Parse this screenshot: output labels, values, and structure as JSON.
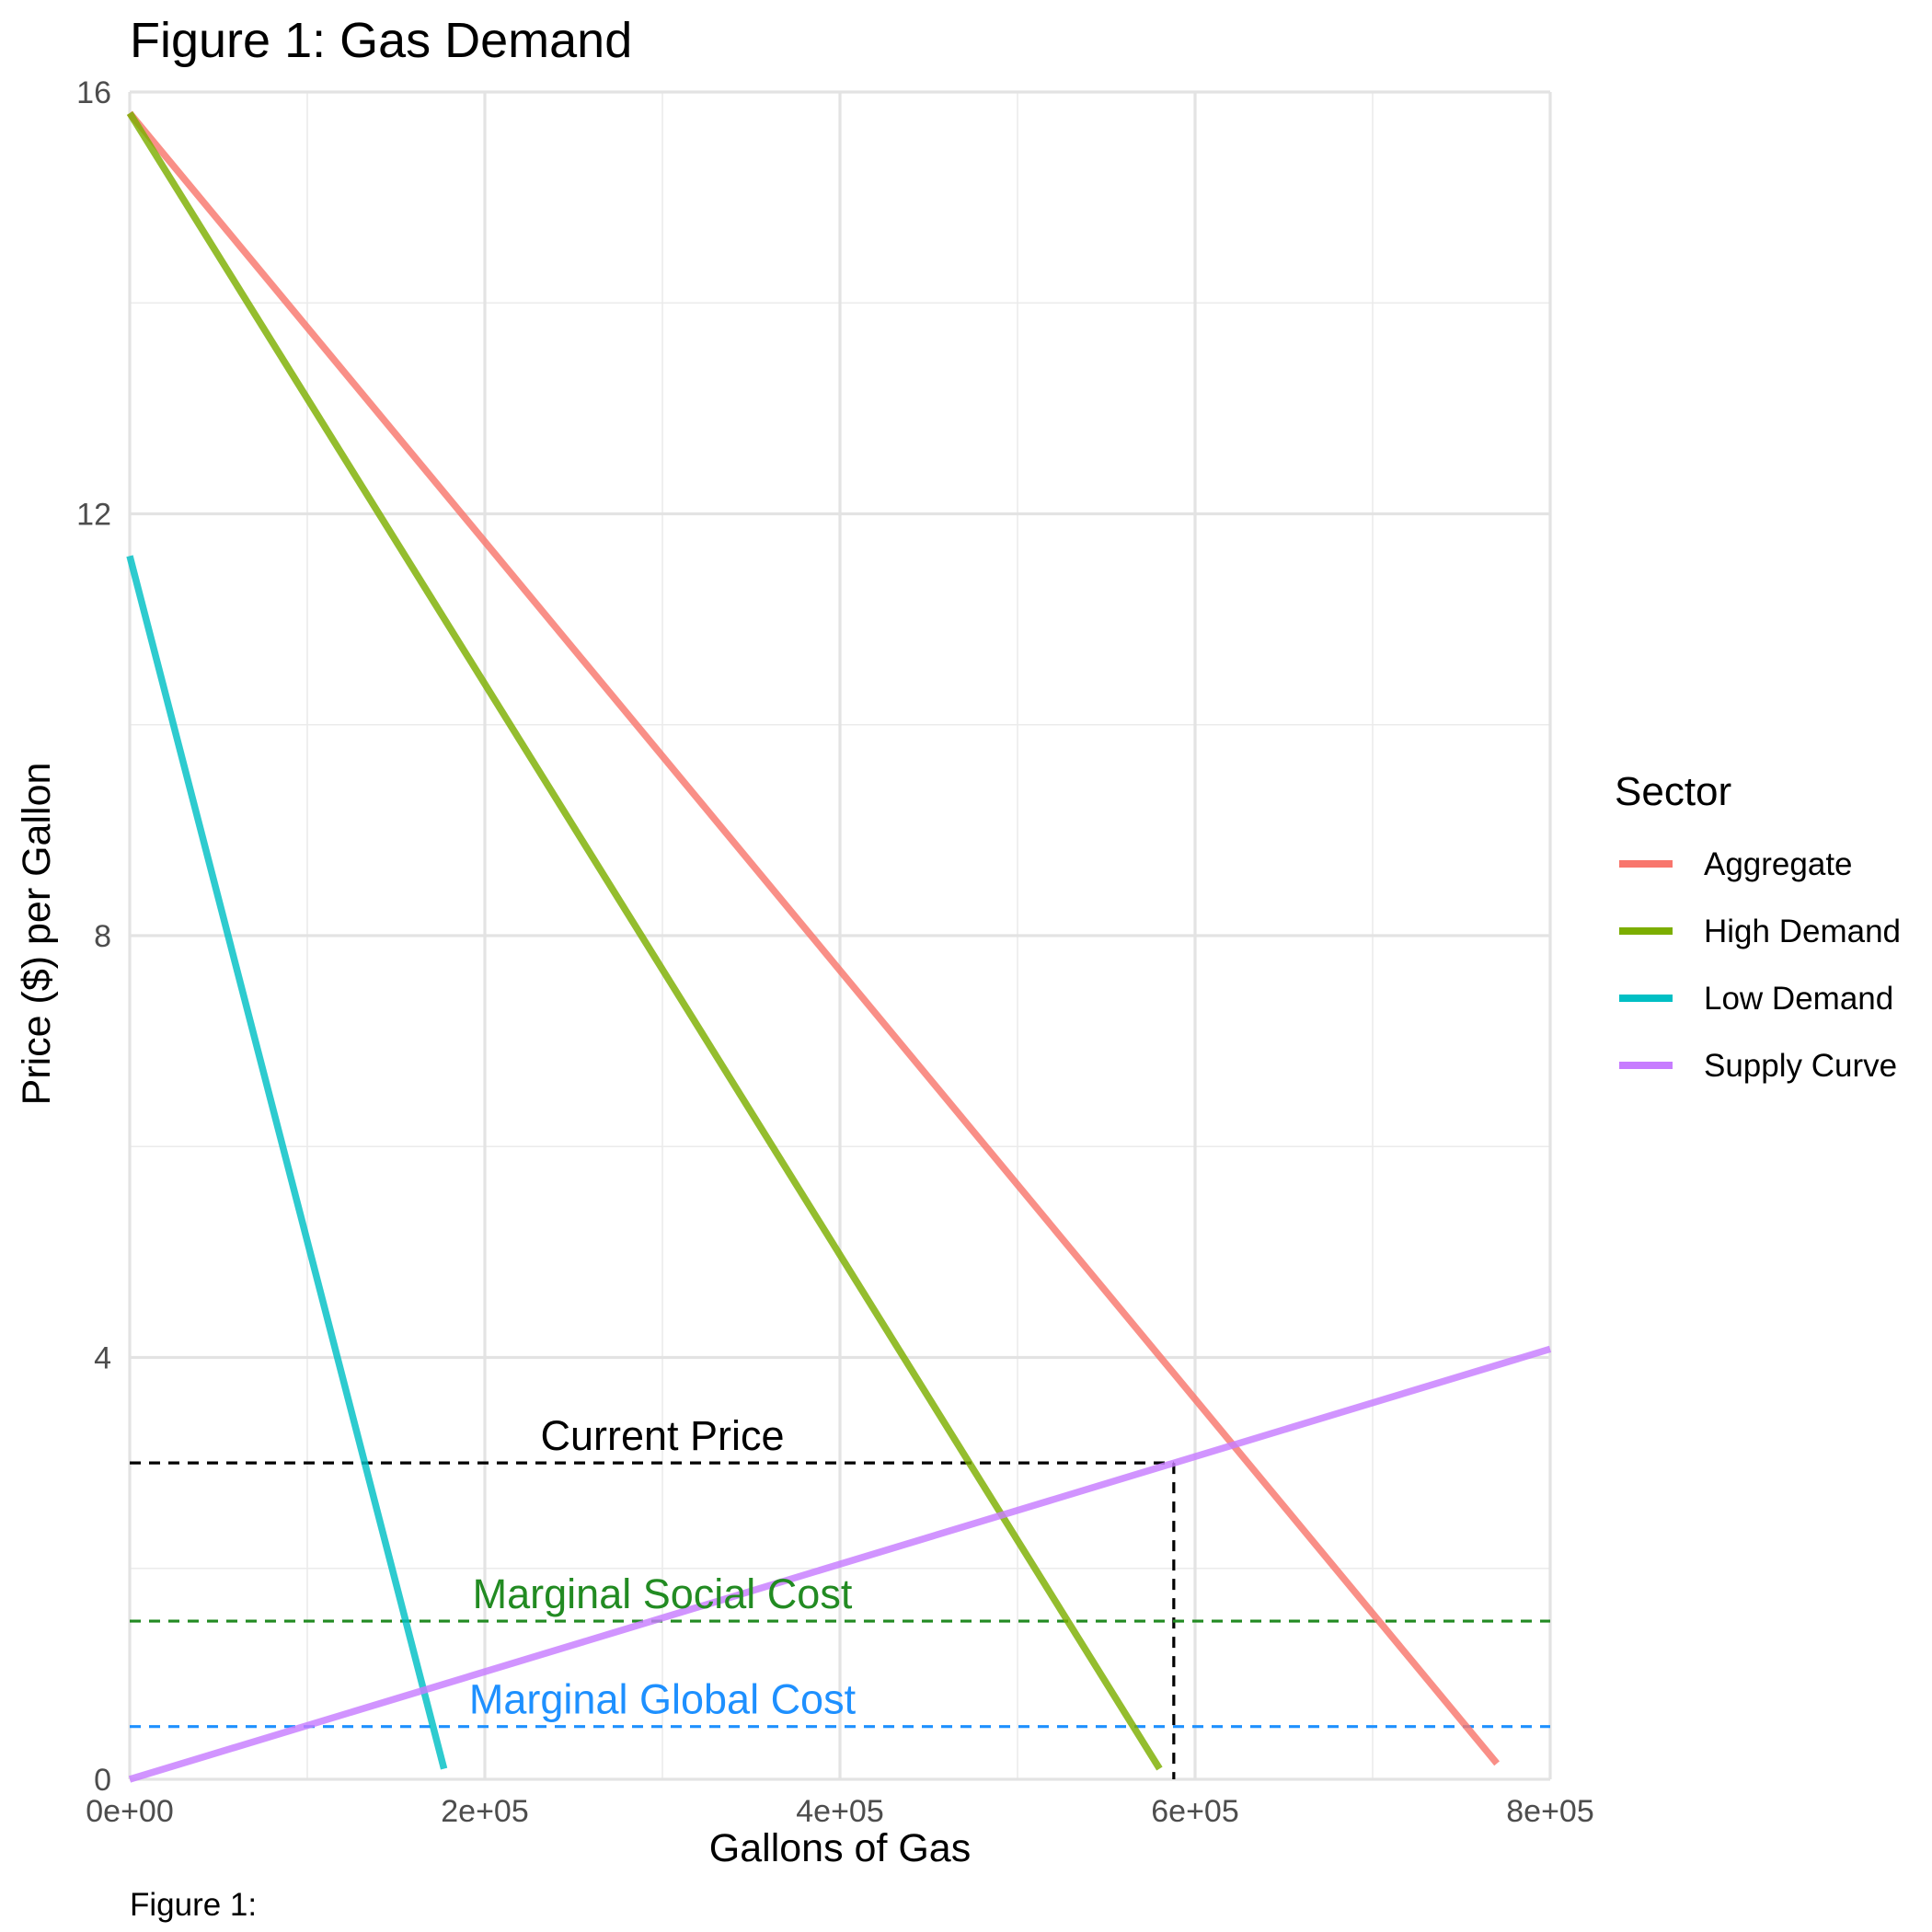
{
  "chart_data": {
    "type": "line",
    "title": "Figure 1: Gas Demand",
    "xlabel": "Gallons of Gas",
    "ylabel": "Price ($) per Gallon",
    "xlim": [
      0,
      800000
    ],
    "ylim": [
      0,
      16
    ],
    "x_ticks": [
      {
        "value": 0,
        "label": "0e+00"
      },
      {
        "value": 200000,
        "label": "2e+05"
      },
      {
        "value": 400000,
        "label": "4e+05"
      },
      {
        "value": 600000,
        "label": "6e+05"
      },
      {
        "value": 800000,
        "label": "8e+05"
      }
    ],
    "y_ticks": [
      {
        "value": 0,
        "label": "0"
      },
      {
        "value": 4,
        "label": "4"
      },
      {
        "value": 8,
        "label": "8"
      },
      {
        "value": 12,
        "label": "12"
      },
      {
        "value": 16,
        "label": "16"
      }
    ],
    "grid": true,
    "legend": {
      "title": "Sector",
      "placement": "right"
    },
    "series": [
      {
        "name": "Aggregate",
        "color": "#F8766D",
        "points": [
          [
            0,
            15.8
          ],
          [
            770000,
            0.15
          ]
        ]
      },
      {
        "name": "High Demand",
        "color": "#7CAE00",
        "points": [
          [
            0,
            15.8
          ],
          [
            580000,
            0.1
          ]
        ]
      },
      {
        "name": "Low Demand",
        "color": "#00BFC4",
        "points": [
          [
            0,
            11.6
          ],
          [
            177000,
            0.1
          ]
        ]
      },
      {
        "name": "Supply Curve",
        "color": "#C77CFF",
        "points": [
          [
            0,
            0
          ],
          [
            800000,
            4.08
          ]
        ]
      }
    ],
    "reference_lines": [
      {
        "label": "Current Price",
        "orientation": "horizontal",
        "y": 3.0,
        "x_end": 588000,
        "color": "#000000"
      },
      {
        "label": "",
        "orientation": "vertical",
        "x": 588000,
        "y_end": 3.0,
        "color": "#000000"
      },
      {
        "label": "Marginal Social Cost",
        "orientation": "horizontal",
        "y": 1.5,
        "color": "#228B22"
      },
      {
        "label": "Marginal Global Cost",
        "orientation": "horizontal",
        "y": 0.5,
        "color": "#1E90FF"
      }
    ],
    "caption": "Figure 1:"
  }
}
